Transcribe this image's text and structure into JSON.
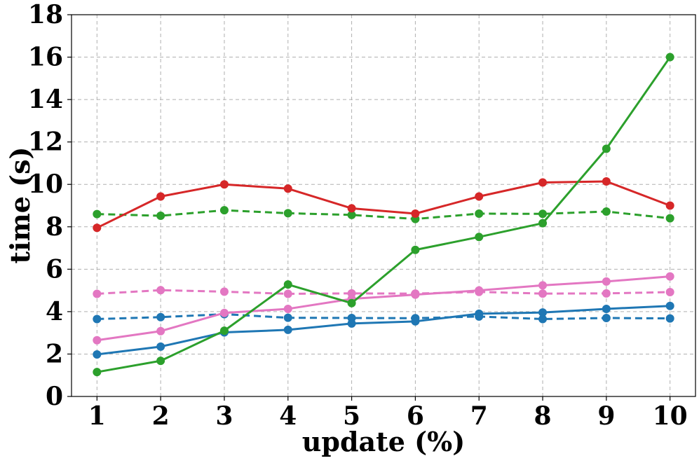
{
  "chart_data": {
    "type": "line",
    "xlabel": "update (%)",
    "ylabel": "time (s)",
    "x": [
      1,
      2,
      3,
      4,
      5,
      6,
      7,
      8,
      9,
      10
    ],
    "xlim": [
      0.6,
      10.4
    ],
    "ylim": [
      0,
      18
    ],
    "yticks": [
      0,
      2,
      4,
      6,
      8,
      10,
      12,
      14,
      16,
      18
    ],
    "xticks": [
      1,
      2,
      3,
      4,
      5,
      6,
      7,
      8,
      9,
      10
    ],
    "grid": true,
    "series": [
      {
        "color": "#2ca02c",
        "style": "dashed",
        "values": [
          8.6,
          8.52,
          8.78,
          8.64,
          8.56,
          8.37,
          8.62,
          8.61,
          8.72,
          8.4
        ]
      },
      {
        "color": "#e377c2",
        "style": "dashed",
        "values": [
          4.84,
          5.01,
          4.94,
          4.84,
          4.86,
          4.85,
          4.93,
          4.85,
          4.86,
          4.92
        ]
      },
      {
        "color": "#1f77b4",
        "style": "dashed",
        "values": [
          3.65,
          3.74,
          3.88,
          3.71,
          3.7,
          3.69,
          3.77,
          3.65,
          3.7,
          3.68
        ]
      },
      {
        "color": "#d62728",
        "style": "solid",
        "values": [
          7.95,
          9.43,
          10.0,
          9.8,
          8.87,
          8.62,
          9.43,
          10.09,
          10.14,
          9.0
        ]
      },
      {
        "color": "#e377c2",
        "style": "solid",
        "values": [
          2.65,
          3.08,
          3.94,
          4.13,
          4.6,
          4.8,
          5.0,
          5.24,
          5.42,
          5.66
        ]
      },
      {
        "color": "#1f77b4",
        "style": "solid",
        "values": [
          1.98,
          2.35,
          3.02,
          3.14,
          3.44,
          3.54,
          3.9,
          3.96,
          4.13,
          4.27
        ]
      },
      {
        "color": "#2ca02c",
        "style": "solid",
        "values": [
          1.15,
          1.68,
          3.1,
          5.28,
          4.4,
          6.91,
          7.52,
          8.17,
          11.68,
          16.0
        ]
      }
    ]
  }
}
